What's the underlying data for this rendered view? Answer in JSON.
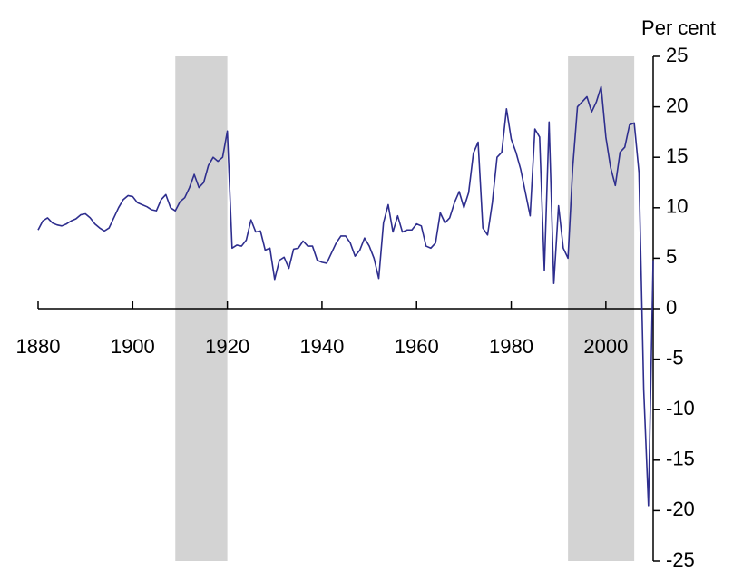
{
  "chart_data": {
    "type": "line",
    "y_axis_label": "Per cent",
    "x": [
      1880,
      1881,
      1882,
      1883,
      1884,
      1885,
      1886,
      1887,
      1888,
      1889,
      1890,
      1891,
      1892,
      1893,
      1894,
      1895,
      1896,
      1897,
      1898,
      1899,
      1900,
      1901,
      1902,
      1903,
      1904,
      1905,
      1906,
      1907,
      1908,
      1909,
      1910,
      1911,
      1912,
      1913,
      1914,
      1915,
      1916,
      1917,
      1918,
      1919,
      1920,
      1921,
      1922,
      1923,
      1924,
      1925,
      1926,
      1927,
      1928,
      1929,
      1930,
      1931,
      1932,
      1933,
      1934,
      1935,
      1936,
      1937,
      1938,
      1939,
      1940,
      1941,
      1942,
      1943,
      1944,
      1945,
      1946,
      1947,
      1948,
      1949,
      1950,
      1951,
      1952,
      1953,
      1954,
      1955,
      1956,
      1957,
      1958,
      1959,
      1960,
      1961,
      1962,
      1963,
      1964,
      1965,
      1966,
      1967,
      1968,
      1969,
      1970,
      1971,
      1972,
      1973,
      1974,
      1975,
      1976,
      1977,
      1978,
      1979,
      1980,
      1981,
      1982,
      1983,
      1984,
      1985,
      1986,
      1987,
      1988,
      1989,
      1990,
      1991,
      1992,
      1993,
      1994,
      1995,
      1996,
      1997,
      1998,
      1999,
      2000,
      2001,
      2002,
      2003,
      2004,
      2005,
      2006,
      2007,
      2008,
      2009,
      2010
    ],
    "series": [
      {
        "color": "#2e2e8e",
        "values": [
          7.8,
          8.7,
          9.0,
          8.5,
          8.3,
          8.2,
          8.4,
          8.7,
          8.9,
          9.3,
          9.4,
          9.0,
          8.4,
          8.0,
          7.7,
          8.0,
          9.0,
          10.0,
          10.8,
          11.2,
          11.1,
          10.5,
          10.3,
          10.1,
          9.8,
          9.7,
          10.8,
          11.3,
          10.0,
          9.7,
          10.6,
          11.0,
          12.0,
          13.3,
          12.0,
          12.5,
          14.2,
          15.0,
          14.6,
          15.0,
          17.6,
          6.0,
          6.3,
          6.2,
          6.8,
          8.8,
          7.6,
          7.7,
          5.8,
          6.0,
          2.9,
          4.8,
          5.1,
          4.0,
          5.9,
          6.0,
          6.7,
          6.2,
          6.2,
          4.8,
          4.6,
          4.5,
          5.5,
          6.5,
          7.2,
          7.2,
          6.5,
          5.2,
          5.8,
          7.0,
          6.2,
          5.0,
          3.0,
          8.5,
          10.3,
          7.6,
          9.2,
          7.6,
          7.8,
          7.8,
          8.4,
          8.2,
          6.2,
          6.0,
          6.5,
          9.5,
          8.5,
          9.0,
          10.5,
          11.6,
          10.0,
          11.5,
          15.4,
          16.5,
          8.0,
          7.3,
          10.5,
          15.0,
          15.5,
          19.8,
          16.8,
          15.5,
          13.8,
          11.5,
          9.2,
          17.8,
          17.0,
          3.8,
          18.5,
          2.5,
          10.2,
          6.0,
          5.0,
          14.0,
          20.0,
          20.5,
          21.0,
          19.5,
          20.5,
          22.0,
          17.0,
          14.0,
          12.2,
          15.5,
          16.0,
          18.2,
          18.4,
          13.5,
          -8.0,
          -19.5,
          4.8
        ]
      }
    ],
    "shaded_spans": [
      [
        1909,
        1920
      ],
      [
        1992,
        2006
      ]
    ],
    "shade_color": "#d3d3d3",
    "xlim": [
      1880,
      2010
    ],
    "xticks": [
      1880,
      1900,
      1920,
      1940,
      1960,
      1980,
      2000
    ],
    "ylim": [
      -25,
      25
    ],
    "yticks": [
      -25,
      -20,
      -15,
      -10,
      -5,
      0,
      5,
      10,
      15,
      20,
      25
    ],
    "y_axis_side": "right"
  }
}
